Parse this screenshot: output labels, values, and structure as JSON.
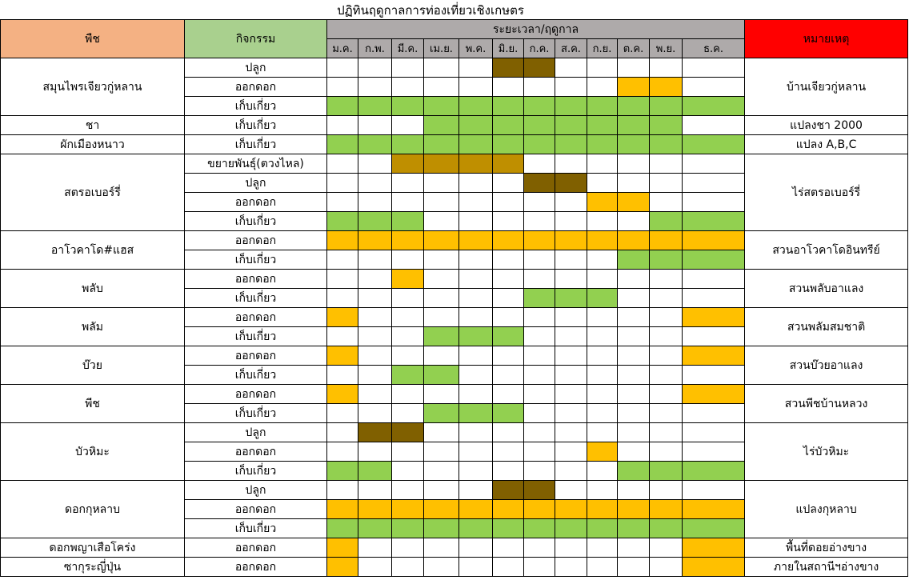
{
  "title": "ปฏิทินฤดูกาลการท่องเที่ยวเชิงเกษตร",
  "headers": {
    "plant": "พืช",
    "activity": "กิจกรรม",
    "period": "ระยะเวลา/ฤดูกาล",
    "remark": "หมายเหตุ"
  },
  "months": [
    "ม.ค.",
    "ก.พ.",
    "มี.ค.",
    "เม.ย.",
    "พ.ค.",
    "มิ.ย.",
    "ก.ค.",
    "ส.ค.",
    "ก.ย.",
    "ต.ค.",
    "พ.ย.",
    "ธ.ค."
  ],
  "groups": [
    {
      "plant": "สมุนไพรเจียวกู่หลาน",
      "remark": "บ้านเจียวกู่หลาน",
      "activities": [
        {
          "name": "ปลูก",
          "cells": [
            null,
            null,
            null,
            null,
            null,
            "#806000",
            "#806000",
            null,
            null,
            null,
            null,
            null
          ]
        },
        {
          "name": "ออกดอก",
          "cells": [
            null,
            null,
            null,
            null,
            null,
            null,
            null,
            null,
            null,
            "#ffc000",
            "#ffc000",
            null
          ]
        },
        {
          "name": "เก็บเกี่ยว",
          "cells": [
            "#92d050",
            "#92d050",
            "#92d050",
            "#92d050",
            "#92d050",
            "#92d050",
            "#92d050",
            "#92d050",
            "#92d050",
            "#92d050",
            "#92d050",
            "#92d050"
          ]
        }
      ]
    },
    {
      "plant": "ชา",
      "remark": "แปลงชา 2000",
      "activities": [
        {
          "name": "เก็บเกี่ยว",
          "cells": [
            null,
            null,
            null,
            "#92d050",
            "#92d050",
            "#92d050",
            "#92d050",
            "#92d050",
            "#92d050",
            "#92d050",
            "#92d050",
            null
          ]
        }
      ]
    },
    {
      "plant": "ผักเมืองหนาว",
      "remark": "แปลง A,B,C",
      "activities": [
        {
          "name": "เก็บเกี่ยว",
          "cells": [
            "#92d050",
            "#92d050",
            "#92d050",
            "#92d050",
            "#92d050",
            "#92d050",
            "#92d050",
            "#92d050",
            "#92d050",
            "#92d050",
            "#92d050",
            "#92d050"
          ]
        }
      ]
    },
    {
      "plant": "สตรอเบอร์รี่",
      "remark": "ไร่สตรอเบอร์รี่",
      "activities": [
        {
          "name": "ขยายพันธุ์(ตวงไหล)",
          "cells": [
            null,
            null,
            "#bf8f00",
            "#bf8f00",
            "#bf8f00",
            "#bf8f00",
            null,
            null,
            null,
            null,
            null,
            null
          ]
        },
        {
          "name": "ปลูก",
          "cells": [
            null,
            null,
            null,
            null,
            null,
            null,
            "#806000",
            "#806000",
            null,
            null,
            null,
            null
          ]
        },
        {
          "name": "ออกดอก",
          "cells": [
            null,
            null,
            null,
            null,
            null,
            null,
            null,
            null,
            "#ffc000",
            "#ffc000",
            null,
            null
          ]
        },
        {
          "name": "เก็บเกี่ยว",
          "cells": [
            "#92d050",
            "#92d050",
            "#92d050",
            null,
            null,
            null,
            null,
            null,
            null,
            null,
            "#92d050",
            "#92d050"
          ]
        }
      ]
    },
    {
      "plant": "อาโวคาโด#แฮส",
      "remark": "สวนอาโวคาโดอินทรีย์",
      "activities": [
        {
          "name": "ออกดอก",
          "cells": [
            "#ffc000",
            "#ffc000",
            "#ffc000",
            "#ffc000",
            "#ffc000",
            "#ffc000",
            "#ffc000",
            "#ffc000",
            "#ffc000",
            "#ffc000",
            "#ffc000",
            "#ffc000"
          ]
        },
        {
          "name": "เก็บเกี่ยว",
          "cells": [
            null,
            null,
            null,
            null,
            null,
            null,
            null,
            null,
            null,
            "#92d050",
            "#92d050",
            "#92d050"
          ]
        }
      ]
    },
    {
      "plant": "พลับ",
      "remark": "สวนพลับอาแลง",
      "activities": [
        {
          "name": "ออกดอก",
          "cells": [
            null,
            null,
            "#ffc000",
            null,
            null,
            null,
            null,
            null,
            null,
            null,
            null,
            null
          ]
        },
        {
          "name": "เก็บเกี่ยว",
          "cells": [
            null,
            null,
            null,
            null,
            null,
            null,
            "#92d050",
            "#92d050",
            "#92d050",
            null,
            null,
            null
          ]
        }
      ]
    },
    {
      "plant": "พลัม",
      "remark": "สวนพลัมสมชาติ",
      "activities": [
        {
          "name": "ออกดอก",
          "cells": [
            "#ffc000",
            null,
            null,
            null,
            null,
            null,
            null,
            null,
            null,
            null,
            null,
            "#ffc000"
          ]
        },
        {
          "name": "เก็บเกี่ยว",
          "cells": [
            null,
            null,
            null,
            "#92d050",
            "#92d050",
            "#92d050",
            null,
            null,
            null,
            null,
            null,
            null
          ]
        }
      ]
    },
    {
      "plant": "บ๊วย",
      "remark": "สวนบ๊วยอาแลง",
      "activities": [
        {
          "name": "ออกดอก",
          "cells": [
            "#ffc000",
            null,
            null,
            null,
            null,
            null,
            null,
            null,
            null,
            null,
            null,
            "#ffc000"
          ]
        },
        {
          "name": "เก็บเกี่ยว",
          "cells": [
            null,
            null,
            "#92d050",
            "#92d050",
            null,
            null,
            null,
            null,
            null,
            null,
            null,
            null
          ]
        }
      ]
    },
    {
      "plant": "พีช",
      "remark": "สวนพีชบ้านหลวง",
      "activities": [
        {
          "name": "ออกดอก",
          "cells": [
            "#ffc000",
            null,
            null,
            null,
            null,
            null,
            null,
            null,
            null,
            null,
            null,
            "#ffc000"
          ]
        },
        {
          "name": "เก็บเกี่ยว",
          "cells": [
            null,
            null,
            null,
            "#92d050",
            "#92d050",
            "#92d050",
            null,
            null,
            null,
            null,
            null,
            null
          ]
        }
      ]
    },
    {
      "plant": "บัวหิมะ",
      "remark": "ไร่บัวหิมะ",
      "activities": [
        {
          "name": "ปลูก",
          "cells": [
            null,
            "#806000",
            "#806000",
            null,
            null,
            null,
            null,
            null,
            null,
            null,
            null,
            null
          ]
        },
        {
          "name": "ออกดอก",
          "cells": [
            null,
            null,
            null,
            null,
            null,
            null,
            null,
            null,
            "#ffc000",
            null,
            null,
            null
          ]
        },
        {
          "name": "เก็บเกี่ยว",
          "cells": [
            "#92d050",
            "#92d050",
            null,
            null,
            null,
            null,
            null,
            null,
            null,
            "#92d050",
            "#92d050",
            "#92d050"
          ]
        }
      ]
    },
    {
      "plant": "ดอกกุหลาบ",
      "remark": "แปลงกุหลาบ",
      "activities": [
        {
          "name": "ปลูก",
          "cells": [
            null,
            null,
            null,
            null,
            null,
            "#806000",
            "#806000",
            null,
            null,
            null,
            null,
            null
          ]
        },
        {
          "name": "ออกดอก",
          "cells": [
            "#ffc000",
            "#ffc000",
            "#ffc000",
            "#ffc000",
            "#ffc000",
            "#ffc000",
            "#ffc000",
            "#ffc000",
            "#ffc000",
            "#ffc000",
            "#ffc000",
            "#ffc000"
          ]
        },
        {
          "name": "เก็บเกี่ยว",
          "cells": [
            "#92d050",
            "#92d050",
            "#92d050",
            "#92d050",
            "#92d050",
            "#92d050",
            "#92d050",
            "#92d050",
            "#92d050",
            "#92d050",
            "#92d050",
            "#92d050"
          ]
        }
      ]
    },
    {
      "plant": "ดอกพญาเสือโคร่ง",
      "remark": "พื้นที่ดอยอ่างขาง",
      "activities": [
        {
          "name": "ออกดอก",
          "cells": [
            "#ffc000",
            null,
            null,
            null,
            null,
            null,
            null,
            null,
            null,
            null,
            null,
            "#ffc000"
          ]
        }
      ]
    },
    {
      "plant": "ซากุระญี่ปุ่น",
      "remark": "ภายในสถานีฯอ่างขาง",
      "activities": [
        {
          "name": "ออกดอก",
          "cells": [
            "#ffc000",
            null,
            null,
            null,
            null,
            null,
            null,
            null,
            null,
            null,
            null,
            "#ffc000"
          ]
        }
      ]
    }
  ]
}
